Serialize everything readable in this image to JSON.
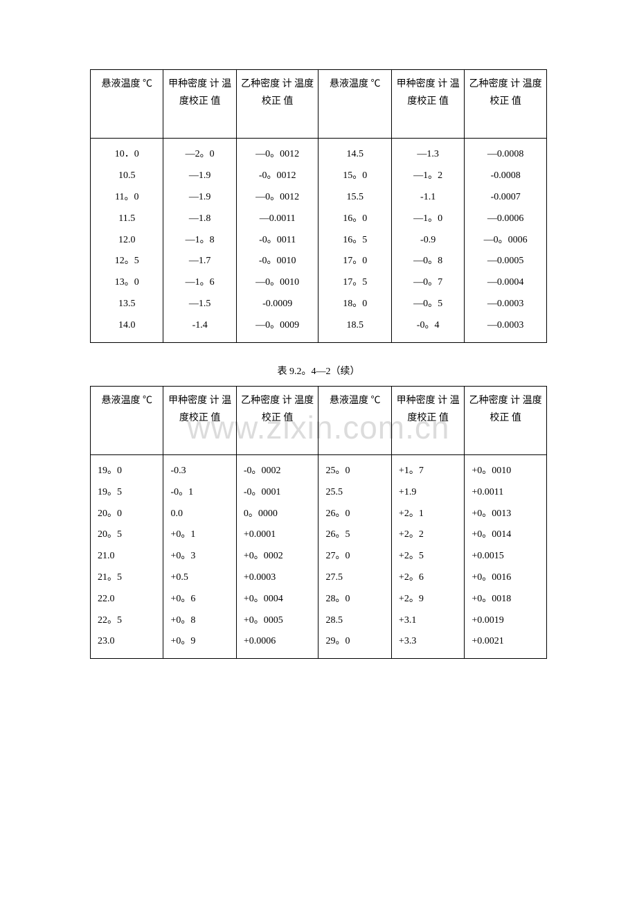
{
  "watermark": "www.zixin.com.cn",
  "caption": "表 9.2。4—2（续）",
  "headers": {
    "temp": "悬液温度\n℃",
    "jia": "甲种密度\n计\n温度校正\n值",
    "yi": "乙种密度\n计\n温度校正\n值"
  },
  "table1": {
    "c1": "10．0\n10.5\n11。0\n11.5\n12.0\n12。5\n13。0\n13.5\n14.0",
    "c2": "—2。0\n—1.9\n—1.9\n—1.8\n—1。8\n—1.7\n—1。6\n—1.5\n-1.4",
    "c3": "—0。0012\n-0。0012\n—0。0012\n—0.0011\n-0。0011\n-0。0010\n—0。0010\n-0.0009\n—0。0009",
    "c4": "14.5\n15。0\n15.5\n16。0\n16。5\n17。0\n17。5\n18。0\n18.5",
    "c5": "—1.3\n—1。2\n-1.1\n—1。0\n-0.9\n—0。8\n—0。7\n—0。5\n-0。4",
    "c6": "—0.0008\n-0.0008\n-0.0007\n—0.0006\n—0。0006\n—0.0005\n—0.0004\n—0.0003\n—0.0003"
  },
  "table2": {
    "c1": "19。0\n19。5\n20。0\n20。5\n21.0\n21。5\n22.0\n22。5\n23.0",
    "c2": "-0.3\n-0。1\n0.0\n+0。1\n+0。3\n+0.5\n+0。6\n+0。8\n+0。9",
    "c3": "-0。0002\n-0。0001\n0。0000\n+0.0001\n+0。0002\n+0.0003\n+0。0004\n+0。0005\n+0.0006",
    "c4": "25。0\n25.5\n26。0\n26。5\n27。0\n27.5\n28。0\n28.5\n29。0",
    "c5": "+1。7\n+1.9\n+2。1\n+2。2\n+2。5\n+2。6\n+2。9\n+3.1\n+3.3",
    "c6": "+0。0010\n+0.0011\n+0。0013\n+0。0014\n+0.0015\n+0。0016\n+0。0018\n+0.0019\n+0.0021"
  },
  "colors": {
    "text": "#000000",
    "background": "#ffffff",
    "border": "#000000",
    "watermark": "#dcdcdc"
  },
  "typography": {
    "body_font": "SimSun",
    "body_size": 14,
    "watermark_size": 46
  }
}
